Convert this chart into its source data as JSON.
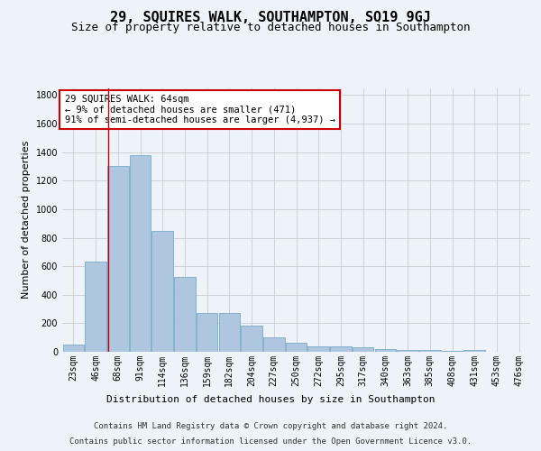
{
  "title": "29, SQUIRES WALK, SOUTHAMPTON, SO19 9GJ",
  "subtitle": "Size of property relative to detached houses in Southampton",
  "xlabel": "Distribution of detached houses by size in Southampton",
  "ylabel": "Number of detached properties",
  "footer_line1": "Contains HM Land Registry data © Crown copyright and database right 2024.",
  "footer_line2": "Contains public sector information licensed under the Open Government Licence v3.0.",
  "categories": [
    "23sqm",
    "46sqm",
    "68sqm",
    "91sqm",
    "114sqm",
    "136sqm",
    "159sqm",
    "182sqm",
    "204sqm",
    "227sqm",
    "250sqm",
    "272sqm",
    "295sqm",
    "317sqm",
    "340sqm",
    "363sqm",
    "385sqm",
    "408sqm",
    "431sqm",
    "453sqm",
    "476sqm"
  ],
  "values": [
    50,
    635,
    1305,
    1380,
    848,
    528,
    275,
    275,
    185,
    103,
    65,
    38,
    38,
    30,
    20,
    10,
    10,
    5,
    10,
    3,
    3
  ],
  "bar_color": "#aec6df",
  "bar_edge_color": "#7aaac8",
  "grid_color": "#cccccc",
  "annotation_box_color": "#cc0000",
  "annotation_text": "29 SQUIRES WALK: 64sqm\n← 9% of detached houses are smaller (471)\n91% of semi-detached houses are larger (4,937) →",
  "vline_x_index": 1.55,
  "vline_color": "#cc0000",
  "ylim": [
    0,
    1850
  ],
  "yticks": [
    0,
    200,
    400,
    600,
    800,
    1000,
    1200,
    1400,
    1600,
    1800
  ],
  "bg_color": "#eef3fa",
  "title_fontsize": 11,
  "subtitle_fontsize": 9,
  "axis_label_fontsize": 8,
  "tick_fontsize": 7,
  "annotation_fontsize": 7.5,
  "footer_fontsize": 6.5
}
